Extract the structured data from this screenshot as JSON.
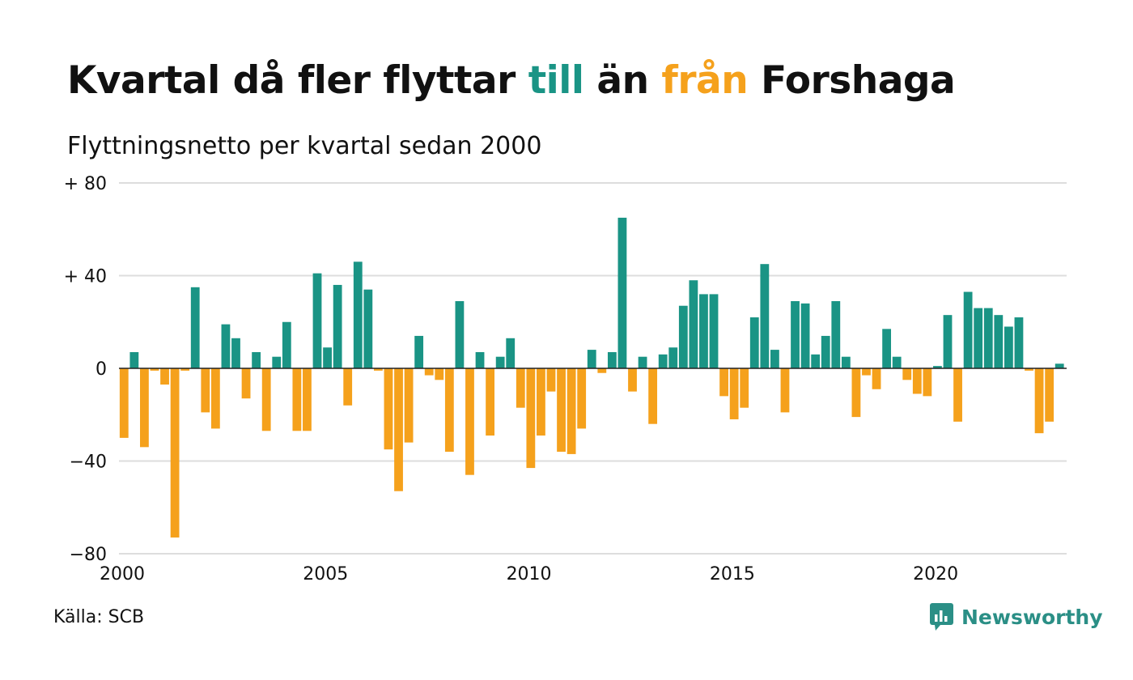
{
  "title": {
    "part1": "Kvartal då fler flyttar ",
    "till": "till",
    "part2": " än ",
    "fran": "från",
    "part3": " Forshaga"
  },
  "subtitle": "Flyttningsnetto per kvartal sedan 2000",
  "source": "Källa: SCB",
  "logo_text": "Newsworthy",
  "colors": {
    "positive": "#1a9485",
    "negative": "#f5a11c",
    "grid": "#dddddd",
    "baseline": "#222222",
    "logo": "#2b8f86"
  },
  "chart_data": {
    "type": "bar",
    "title": "Kvartal då fler flyttar till än från Forshaga",
    "subtitle": "Flyttningsnetto per kvartal sedan 2000",
    "x_start": 2000.0,
    "x_step": 0.25,
    "xlim": [
      2000,
      2023.3
    ],
    "ylim": [
      -80,
      80
    ],
    "y_ticks": [
      {
        "value": 80,
        "label": "+ 80"
      },
      {
        "value": 40,
        "label": "+ 40"
      },
      {
        "value": 0,
        "label": "0"
      },
      {
        "value": -40,
        "label": "−40"
      },
      {
        "value": -80,
        "label": "−80"
      }
    ],
    "x_ticks": [
      {
        "value": 2000,
        "label": "2000"
      },
      {
        "value": 2005,
        "label": "2005"
      },
      {
        "value": 2010,
        "label": "2010"
      },
      {
        "value": 2015,
        "label": "2015"
      },
      {
        "value": 2020,
        "label": "2020"
      }
    ],
    "grid": true,
    "values": [
      -30,
      7,
      -34,
      -1,
      -7,
      -73,
      -1,
      35,
      -19,
      -26,
      19,
      13,
      -13,
      7,
      -27,
      5,
      20,
      -27,
      -27,
      41,
      9,
      36,
      -16,
      46,
      34,
      -1,
      -35,
      -53,
      -32,
      14,
      -3,
      -5,
      -36,
      29,
      -46,
      7,
      -29,
      5,
      13,
      -17,
      -43,
      -29,
      -10,
      -36,
      -37,
      -26,
      8,
      -2,
      7,
      65,
      -10,
      5,
      -24,
      6,
      9,
      27,
      38,
      32,
      32,
      -12,
      -22,
      -17,
      22,
      45,
      8,
      -19,
      29,
      28,
      6,
      14,
      29,
      5,
      -21,
      -3,
      -9,
      17,
      5,
      -5,
      -11,
      -12,
      1,
      23,
      -23,
      33,
      26,
      26,
      23,
      18,
      22,
      -1,
      -28,
      -23,
      2
    ]
  }
}
